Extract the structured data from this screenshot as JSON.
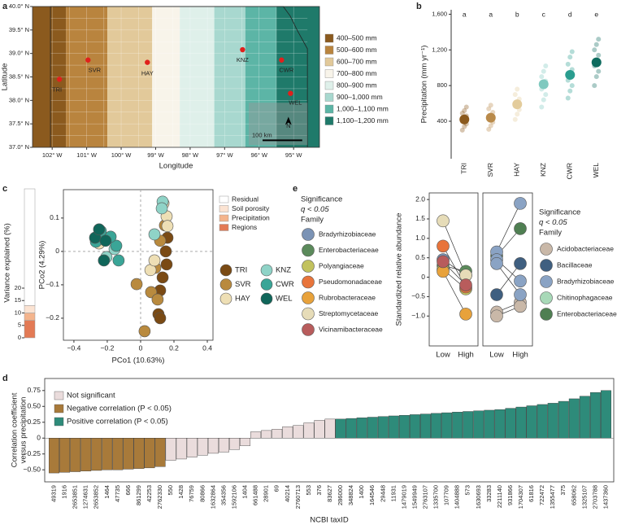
{
  "chart_data": [
    {
      "type": "map",
      "panel": "a",
      "xlabel": "Longitude",
      "ylabel": "Latitude",
      "xlim": [
        -102.57,
        -94.25
      ],
      "ylim": [
        37,
        40
      ],
      "xticks": [
        {
          "value": -102,
          "label": "102° W"
        },
        {
          "value": -101,
          "label": "101° W"
        },
        {
          "value": -100,
          "label": "100° W"
        },
        {
          "value": -99,
          "label": "99° W"
        },
        {
          "value": -98,
          "label": "98° W"
        },
        {
          "value": -97,
          "label": "97° W"
        },
        {
          "value": -96,
          "label": "96° W"
        },
        {
          "value": -95,
          "label": "95° W"
        }
      ],
      "yticks": [
        {
          "value": 37,
          "label": "37.0° N"
        },
        {
          "value": 37.5,
          "label": "37.5° N"
        },
        {
          "value": 38,
          "label": "38.0° N"
        },
        {
          "value": 38.5,
          "label": "38.5° N"
        },
        {
          "value": 39,
          "label": "39.0° N"
        },
        {
          "value": 39.5,
          "label": "39.5° N"
        },
        {
          "value": 40,
          "label": "40.0° N"
        }
      ],
      "categories": [
        "400–500 mm",
        "500–600 mm",
        "600–700 mm",
        "700–800 mm",
        "800–900 mm",
        "900–1,000 mm",
        "1,000–1,100 mm",
        "1,100–1,200 mm"
      ],
      "colors": [
        "#8b5a1e",
        "#b9843e",
        "#e2c99a",
        "#f8f4ea",
        "#dff0ea",
        "#a8d8cf",
        "#5cb5a6",
        "#1f7a6a"
      ],
      "labels": [
        "TRI",
        "SVR",
        "HAY",
        "KNZ",
        "CWR",
        "WEL"
      ],
      "x": [
        -101.79,
        -100.96,
        -99.24,
        -96.48,
        -95.35,
        -95.09
      ],
      "y": [
        38.45,
        38.86,
        38.81,
        39.08,
        38.86,
        38.15
      ],
      "point_color": "#e0201c",
      "scale_label": "100 km",
      "north_label": "N"
    },
    {
      "type": "dot",
      "panel": "b",
      "ylabel": "Precipitation (mm yr⁻¹)",
      "ylim": [
        -20,
        1650
      ],
      "yticks": [
        400,
        800,
        {
          "value": 1200,
          "label": "1,200"
        },
        {
          "value": 1600,
          "label": "1,600"
        }
      ],
      "categories": [
        "TRI",
        "SVR",
        "HAY",
        "KNZ",
        "CWR",
        "WEL"
      ],
      "colors": [
        "#8b5a1e",
        "#b98a4a",
        "#e3cc9c",
        "#7fc9bf",
        "#2a9d8f",
        "#0d6b5e"
      ],
      "annotations": [
        "a",
        "a",
        "b",
        "c",
        "d",
        "e"
      ],
      "values": [
        420,
        440,
        590,
        815,
        920,
        1060
      ],
      "points": [
        [
          300,
          340,
          370,
          400,
          430,
          460,
          490,
          520,
          560
        ],
        [
          310,
          350,
          390,
          430,
          460,
          500,
          540,
          580
        ],
        [
          420,
          480,
          530,
          570,
          610,
          650,
          700,
          760
        ],
        [
          560,
          640,
          700,
          760,
          800,
          850,
          900,
          960,
          1020
        ],
        [
          660,
          740,
          800,
          860,
          920,
          980,
          1040,
          1120,
          1180
        ],
        [
          800,
          900,
          960,
          1020,
          1080,
          1140,
          1200,
          1260,
          1320
        ]
      ]
    },
    {
      "type": "stacked_bar",
      "panel": "c",
      "ylabel": "Variance explained (%)",
      "ylim": [
        0,
        60
      ],
      "yticks": [
        0,
        5,
        10,
        15,
        20
      ],
      "series": [
        {
          "name": "Residual",
          "color": "#ffffff",
          "values": [
            47
          ]
        },
        {
          "name": "Soil porosity",
          "color": "#fbe3d2",
          "values": [
            3
          ]
        },
        {
          "name": "Precipitation",
          "color": "#f4b48c",
          "values": [
            3
          ]
        },
        {
          "name": "Regions",
          "color": "#e37a55",
          "values": [
            7
          ]
        }
      ]
    },
    {
      "type": "scatter",
      "xlabel": "PCo1 (10.63%)",
      "ylabel": "PCo2 (4.29%)",
      "xlim": [
        -0.463,
        0.434
      ],
      "ylim": [
        -0.266,
        0.185
      ],
      "xticks": [
        {
          "value": -0.4,
          "label": "−0.4"
        },
        {
          "value": -0.2,
          "label": "−0.2"
        },
        0,
        0.2,
        0.4
      ],
      "yticks": [
        {
          "value": -0.2,
          "label": "−0.2"
        },
        {
          "value": -0.1,
          "label": "−0.1"
        },
        0,
        0.1
      ],
      "series": [
        {
          "name": "TRI",
          "color": "#7a4a14",
          "x": [
            0.151,
            0.156,
            0.132,
            0.117,
            0.107,
            0.117,
            0.161
          ],
          "y": [
            0,
            -0.039,
            -0.078,
            -0.117,
            -0.188,
            -0.2,
            0.041
          ]
        },
        {
          "name": "SVR",
          "color": "#b98a3e",
          "x": [
            0.146,
            0.117,
            0.088,
            0.063,
            0.102,
            0.024,
            -0.024
          ],
          "y": [
            0.078,
            0.032,
            -0.049,
            -0.122,
            -0.144,
            -0.239,
            -0.098
          ]
        },
        {
          "name": "HAY",
          "color": "#eedfb5",
          "x": [
            0.156,
            0.161,
            0.059,
            0.083,
            0.137,
            -0.249
          ],
          "y": [
            0.105,
            0.076,
            -0.056,
            -0.027,
            0.144,
            0.024
          ]
        },
        {
          "name": "KNZ",
          "color": "#8fd3c7",
          "x": [
            0.132,
            0.127,
            -0.205,
            -0.156,
            0.083
          ],
          "y": [
            0.149,
            0.129,
            -0.017,
            0.007,
            0.051
          ]
        },
        {
          "name": "CWR",
          "color": "#3aa597",
          "x": [
            -0.146,
            -0.18,
            -0.268,
            -0.239,
            -0.132
          ],
          "y": [
            0.017,
            0.044,
            0.029,
            0.061,
            -0.027
          ]
        },
        {
          "name": "WEL",
          "color": "#10665a",
          "x": [
            -0.273,
            -0.22,
            -0.21,
            -0.249
          ],
          "y": [
            0.041,
            -0.027,
            0.032,
            0.066
          ]
        }
      ]
    },
    {
      "type": "paired",
      "panel": "e",
      "ylabel": "Standardized relative abundance",
      "categories": [
        "Low",
        "High"
      ],
      "legend_title": [
        "Significance",
        "q < 0.05",
        "Family"
      ],
      "ylim": [
        -1.77,
        2.17
      ],
      "yticks": [
        {
          "value": -1,
          "label": "−1.0"
        },
        {
          "value": -0.5,
          "label": "−0.5"
        },
        0,
        0.5,
        {
          "value": 1,
          "label": "1.0"
        },
        1.5,
        {
          "value": 2,
          "label": "2.0"
        }
      ],
      "left": {
        "families": [
          "Bradyrhizobiaceae",
          "Enterobacteriaceae",
          "Polyangiaceae",
          "Pseudomonadaceae",
          "Rubrobacteraceae",
          "Streptomycetaceae",
          "Vicinamibacteraceae"
        ],
        "colors": [
          "#7b93b5",
          "#5b8a5b",
          "#c2c25e",
          "#e8743b",
          "#e8a23b",
          "#e6dcb8",
          "#b85c5c"
        ],
        "series": [
          {
            "color": "#7b93b5",
            "values": [
              0.45,
              0.05
            ]
          },
          {
            "color": "#5b8a5b",
            "values": [
              0.3,
              0.15
            ]
          },
          {
            "color": "#c2c25e",
            "values": [
              0.2,
              -0.3
            ]
          },
          {
            "color": "#e8743b",
            "values": [
              0.8,
              -0.25
            ]
          },
          {
            "color": "#e8a23b",
            "values": [
              0.15,
              -0.95
            ]
          },
          {
            "color": "#e6dcb8",
            "values": [
              1.45,
              0.05
            ]
          },
          {
            "color": "#b85c5c",
            "values": [
              0.4,
              -0.2
            ]
          }
        ]
      },
      "right": {
        "families": [
          "Acidobacteriaceae",
          "Bacillaceae",
          "Bradyrhizobiaceae",
          "Chitinophagaceae",
          "Enterobacteriaceae"
        ],
        "colors": [
          "#c9b8a8",
          "#3f5f80",
          "#8aa3c4",
          "#a8d9b8",
          "#4f7f52"
        ],
        "series": [
          {
            "color": "#c9b8a8",
            "values": [
              -0.9,
              -0.65
            ]
          },
          {
            "color": "#c9b8a8",
            "values": [
              -1.0,
              -0.75
            ]
          },
          {
            "color": "#4f7f52",
            "values": [
              0.55,
              1.25
            ]
          },
          {
            "color": "#8aa3c4",
            "values": [
              0.65,
              1.9
            ]
          },
          {
            "color": "#3f5f80",
            "values": [
              -0.45,
              0.35
            ]
          },
          {
            "color": "#8aa3c4",
            "values": [
              0.45,
              -0.1
            ]
          },
          {
            "color": "#8aa3c4",
            "values": [
              0.35,
              -0.45
            ]
          }
        ]
      }
    },
    {
      "type": "bar",
      "panel": "d",
      "ylabel": [
        "Correlation coefficient",
        "versus precipitation"
      ],
      "xlabel": "NCBI taxID",
      "ylim": [
        -0.69,
        0.94
      ],
      "yticks": [
        {
          "value": -0.5,
          "label": "−0.50"
        },
        {
          "value": -0.25,
          "label": "−0.25"
        },
        0,
        0.25,
        {
          "value": 0.5,
          "label": "0.50"
        },
        0.75
      ],
      "categories": [
        "49319",
        "1916",
        "2653851",
        "1274631",
        "2653852",
        "1464",
        "47735",
        "666",
        "861299",
        "42253",
        "2762330",
        "550",
        "1428",
        "76759",
        "80866",
        "1632864",
        "354356",
        "1592106",
        "1404",
        "661488",
        "28901",
        "69",
        "40214",
        "2760713",
        "553",
        "376",
        "83627",
        "286000",
        "348824",
        "1400",
        "164546",
        "29448",
        "11931",
        "1479019",
        "1549949",
        "2763107",
        "1335700",
        "107709",
        "1404888",
        "573",
        "1630693",
        "33283",
        "2211140",
        "931866",
        "1704307",
        "61816",
        "722472",
        "1355477",
        "375",
        "658062",
        "1325107",
        "2703788",
        "1437360"
      ],
      "series": [
        {
          "name": "Not significant",
          "color": "#eadcdc",
          "values": [
            null,
            null,
            null,
            null,
            null,
            null,
            null,
            null,
            null,
            null,
            null,
            -0.35,
            -0.33,
            -0.3,
            -0.27,
            -0.24,
            -0.22,
            -0.18,
            -0.12,
            0.1,
            0.12,
            0.14,
            0.18,
            0.2,
            0.24,
            0.28,
            0.3,
            null,
            null,
            null,
            null,
            null,
            null,
            null,
            null,
            null,
            null,
            null,
            null,
            null,
            null,
            null,
            null,
            null,
            null,
            null,
            null,
            null,
            null,
            null,
            null,
            null,
            null
          ]
        },
        {
          "name": "Negative correlation (P < 0.05)",
          "color": "#a87a3a",
          "values": [
            -0.55,
            -0.54,
            -0.53,
            -0.52,
            -0.51,
            -0.5,
            -0.5,
            -0.49,
            -0.48,
            -0.47,
            -0.45,
            null,
            null,
            null,
            null,
            null,
            null,
            null,
            null,
            null,
            null,
            null,
            null,
            null,
            null,
            null,
            null,
            null,
            null,
            null,
            null,
            null,
            null,
            null,
            null,
            null,
            null,
            null,
            null,
            null,
            null,
            null,
            null,
            null,
            null,
            null,
            null,
            null,
            null,
            null,
            null,
            null,
            null
          ]
        },
        {
          "name": "Positive correlation (P < 0.05)",
          "color": "#2e8b7a",
          "values": [
            null,
            null,
            null,
            null,
            null,
            null,
            null,
            null,
            null,
            null,
            null,
            null,
            null,
            null,
            null,
            null,
            null,
            null,
            null,
            null,
            null,
            null,
            null,
            null,
            null,
            null,
            null,
            0.3,
            0.31,
            0.32,
            0.33,
            0.34,
            0.35,
            0.36,
            0.37,
            0.38,
            0.39,
            0.4,
            0.41,
            0.42,
            0.43,
            0.44,
            0.45,
            0.47,
            0.49,
            0.51,
            0.53,
            0.55,
            0.58,
            0.62,
            0.66,
            0.72,
            0.75
          ]
        }
      ]
    }
  ]
}
